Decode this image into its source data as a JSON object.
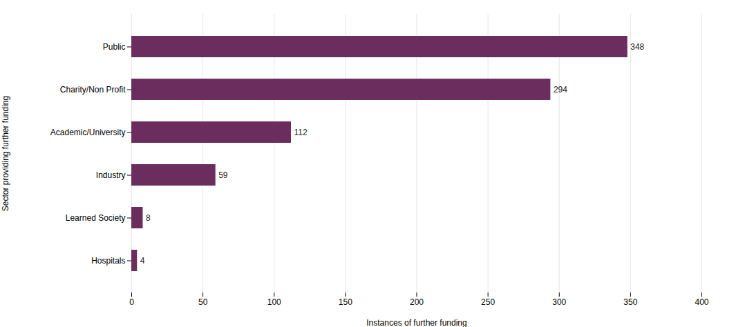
{
  "chart_data": {
    "type": "bar",
    "orientation": "horizontal",
    "xlabel": "Instances of further funding",
    "ylabel": "Sector providing further funding",
    "categories": [
      "Public",
      "Charity/Non Profit",
      "Academic/University",
      "Industry",
      "Learned Society",
      "Hospitals"
    ],
    "values": [
      348,
      294,
      112,
      59,
      8,
      4
    ],
    "color": "#6b2d5e",
    "xlim": [
      0,
      400
    ],
    "xticks": [
      0,
      50,
      100,
      150,
      200,
      250,
      300,
      350,
      400
    ],
    "grid": true,
    "data_labels": true
  }
}
